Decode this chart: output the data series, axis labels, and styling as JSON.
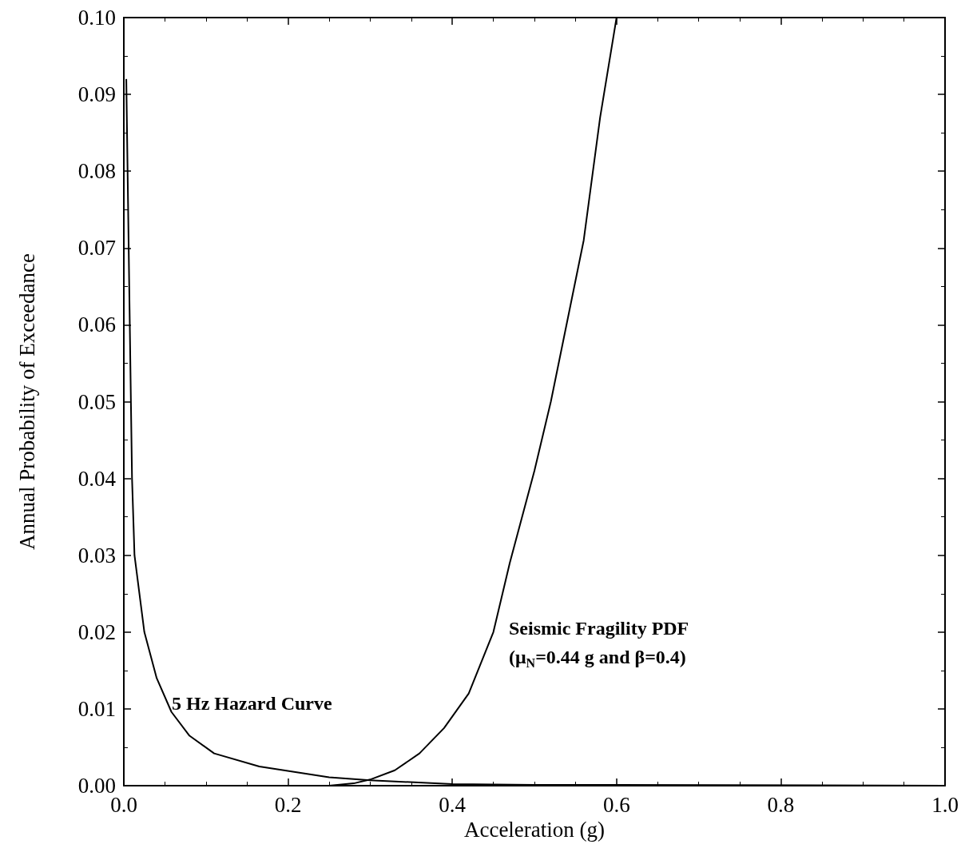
{
  "chart_data": {
    "type": "line",
    "xlabel": "Acceleration (g)",
    "ylabel": "Annual Probability of Exceedance",
    "xlim": [
      0,
      1
    ],
    "ylim": [
      0,
      0.1
    ],
    "xticks": [
      {
        "value": 0,
        "label": "0.0"
      },
      0.2,
      0.4,
      0.6,
      0.8,
      {
        "value": 1,
        "label": "1.0"
      }
    ],
    "yticks": [
      {
        "value": 0,
        "label": "0.00"
      },
      0.01,
      0.02,
      0.03,
      0.04,
      0.05,
      0.06,
      0.07,
      0.08,
      0.09,
      {
        "value": 0.1,
        "label": "0.10"
      }
    ],
    "grid": false,
    "marker": "none",
    "line_style": "solid",
    "series": [
      {
        "color": "#000000",
        "x": [
          0.003,
          0.007,
          0.01,
          0.013,
          0.025,
          0.04,
          0.058,
          0.08,
          0.11,
          0.165,
          0.25,
          0.3,
          0.4,
          0.5,
          0.6,
          1.0
        ],
        "values": [
          0.092,
          0.062,
          0.04,
          0.03,
          0.02,
          0.014,
          0.0096,
          0.0065,
          0.0042,
          0.0025,
          0.0011,
          0.0007,
          0.0002,
          0.0001,
          0.0001,
          0
        ]
      },
      {
        "color": "#000000",
        "x": [
          0,
          0.25,
          0.28,
          0.3,
          0.33,
          0.36,
          0.39,
          0.42,
          0.45,
          0.47,
          0.5,
          0.52,
          0.56,
          0.58,
          0.6
        ],
        "values": [
          0,
          0,
          0.0003,
          0.0008,
          0.002,
          0.0042,
          0.0075,
          0.012,
          0.02,
          0.029,
          0.041,
          0.05,
          0.071,
          0.087,
          0.1
        ]
      }
    ],
    "annotations": [
      "5 Hz Hazard Curve",
      "Seismic Fragility PDF",
      "(μ$_{N}$=0.44 g and β=0.4)"
    ]
  }
}
